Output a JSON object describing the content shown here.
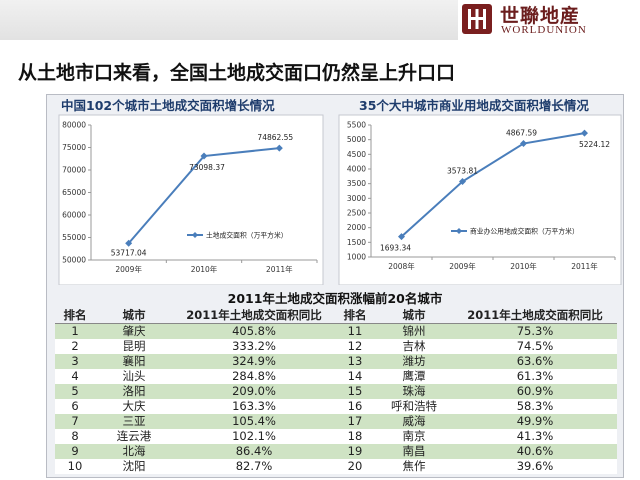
{
  "header": {
    "logo_cn": "世聯地産",
    "logo_en": "WORLDUNION",
    "slide_title": "从土地市口来看，全国土地成交面口仍然呈上升口口"
  },
  "chart_data": [
    {
      "type": "line",
      "title": "中国102个城市土地成交面积增长情况",
      "categories": [
        "2009年",
        "2010年",
        "2011年"
      ],
      "series": [
        {
          "name": "土地成交面积（万平方米）",
          "values": [
            53717.04,
            73098.37,
            74862.55
          ]
        }
      ],
      "data_labels": [
        "53717.04",
        "73098.37",
        "74862.55"
      ],
      "ylim": [
        50000,
        80000
      ],
      "yticks": [
        "50000",
        "55000",
        "60000",
        "65000",
        "70000",
        "75000",
        "80000"
      ],
      "yticks_values": [
        50000,
        55000,
        60000,
        65000,
        70000,
        75000,
        80000
      ],
      "color": "#4a7ebb",
      "legend": "bottom-right"
    },
    {
      "type": "line",
      "title": "35个大中城市商业用地成交面积增长情况",
      "categories": [
        "2008年",
        "2009年",
        "2010年",
        "2011年"
      ],
      "series": [
        {
          "name": "商业办公用地成交面积（万平方米）",
          "values": [
            1693.34,
            3573.81,
            4867.59,
            5224.12
          ]
        }
      ],
      "data_labels": [
        "1693.34",
        "3573.81",
        "4867.59",
        "5224.12"
      ],
      "ylim": [
        1000,
        5500
      ],
      "yticks": [
        "1000",
        "1500",
        "2000",
        "2500",
        "3000",
        "3500",
        "4000",
        "4500",
        "5000",
        "5500"
      ],
      "yticks_values": [
        1000,
        1500,
        2000,
        2500,
        3000,
        3500,
        4000,
        4500,
        5000,
        5500
      ],
      "color": "#4a7ebb",
      "legend": "bottom-right"
    }
  ],
  "table": {
    "title": "2011年土地成交面积涨幅前20名城市",
    "headers": [
      "排名",
      "城市",
      "2011年土地成交面积同比",
      "排名",
      "城市",
      "2011年土地成交面积同比"
    ],
    "rows": [
      [
        "1",
        "肇庆",
        "405.8%",
        "11",
        "锦州",
        "75.3%"
      ],
      [
        "2",
        "昆明",
        "333.2%",
        "12",
        "吉林",
        "74.5%"
      ],
      [
        "3",
        "襄阳",
        "324.9%",
        "13",
        "潍坊",
        "63.6%"
      ],
      [
        "4",
        "汕头",
        "284.8%",
        "14",
        "鹰潭",
        "61.3%"
      ],
      [
        "5",
        "洛阳",
        "209.0%",
        "15",
        "珠海",
        "60.9%"
      ],
      [
        "6",
        "大庆",
        "163.3%",
        "16",
        "呼和浩特",
        "58.3%"
      ],
      [
        "7",
        "三亚",
        "105.4%",
        "17",
        "威海",
        "49.9%"
      ],
      [
        "8",
        "连云港",
        "102.1%",
        "18",
        "南京",
        "41.3%"
      ],
      [
        "9",
        "北海",
        "86.4%",
        "19",
        "南昌",
        "40.6%"
      ],
      [
        "10",
        "沈阳",
        "82.7%",
        "20",
        "焦作",
        "39.6%"
      ]
    ]
  }
}
